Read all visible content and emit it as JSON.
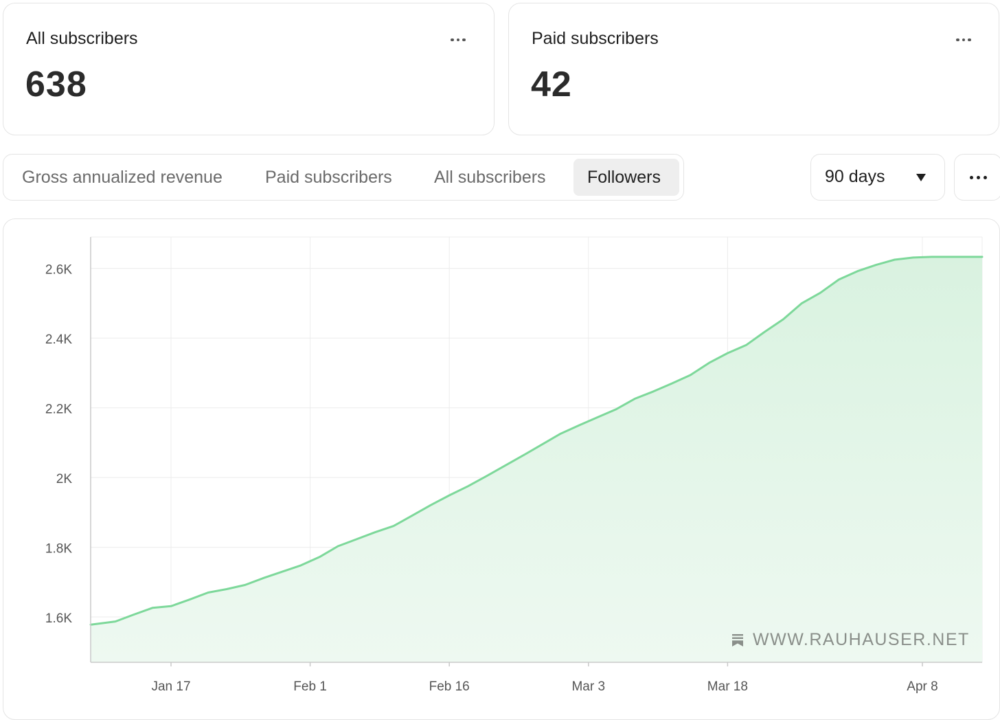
{
  "cards": {
    "all": {
      "label": "All subscribers",
      "value": "638"
    },
    "paid": {
      "label": "Paid subscribers",
      "value": "42"
    }
  },
  "tabs": [
    {
      "label": "Gross annualized revenue",
      "active": false
    },
    {
      "label": "Paid subscribers",
      "active": false
    },
    {
      "label": "All subscribers",
      "active": false
    },
    {
      "label": "Followers",
      "active": true
    }
  ],
  "range_select": {
    "value": "90 days"
  },
  "watermark": {
    "text": "WWW.RAUHAUSER.NET"
  },
  "colors": {
    "line": "#7dd89a",
    "fill": "#e3f6e8",
    "grid": "#ececec"
  },
  "icons": {
    "card_menu": "more-horizontal-icon",
    "range_caret": "caret-down-icon",
    "chart_menu": "more-horizontal-icon"
  },
  "chart_data": {
    "type": "area",
    "title": "",
    "xlabel": "",
    "ylabel": "",
    "x_ticks": [
      "Jan 17",
      "Feb 1",
      "Feb 16",
      "Mar 3",
      "Mar 18",
      "Apr 8"
    ],
    "y_ticks": [
      1600,
      1800,
      2000,
      2200,
      2400,
      2600
    ],
    "y_tick_labels": [
      "1.6K",
      "1.8K",
      "2K",
      "2.2K",
      "2.4K",
      "2.6K"
    ],
    "ylim": [
      1470,
      2690
    ],
    "grid": true,
    "series": [
      {
        "points": [
          [
            "Jan 9",
            1578
          ],
          [
            "Jan 11",
            1587
          ],
          [
            "Jan 13",
            1607
          ],
          [
            "Jan 15",
            1626
          ],
          [
            "Jan 17",
            1631
          ],
          [
            "Jan 19",
            1650
          ],
          [
            "Jan 21",
            1670
          ],
          [
            "Jan 23",
            1680
          ],
          [
            "Jan 25",
            1692
          ],
          [
            "Jan 27",
            1712
          ],
          [
            "Jan 29",
            1730
          ],
          [
            "Jan 31",
            1748
          ],
          [
            "Feb 2",
            1772
          ],
          [
            "Feb 4",
            1803
          ],
          [
            "Feb 6",
            1823
          ],
          [
            "Feb 8",
            1843
          ],
          [
            "Feb 10",
            1861
          ],
          [
            "Feb 12",
            1891
          ],
          [
            "Feb 14",
            1921
          ],
          [
            "Feb 16",
            1949
          ],
          [
            "Feb 18",
            1975
          ],
          [
            "Feb 20",
            2004
          ],
          [
            "Feb 22",
            2034
          ],
          [
            "Feb 24",
            2064
          ],
          [
            "Feb 26",
            2095
          ],
          [
            "Feb 28",
            2126
          ],
          [
            "Mar 2",
            2150
          ],
          [
            "Mar 4",
            2173
          ],
          [
            "Mar 6",
            2196
          ],
          [
            "Mar 8",
            2226
          ],
          [
            "Mar 10",
            2247
          ],
          [
            "Mar 12",
            2270
          ],
          [
            "Mar 14",
            2294
          ],
          [
            "Mar 16",
            2329
          ],
          [
            "Mar 18",
            2357
          ],
          [
            "Mar 20",
            2380
          ],
          [
            "Mar 22",
            2418
          ],
          [
            "Mar 24",
            2454
          ],
          [
            "Mar 26",
            2500
          ],
          [
            "Mar 28",
            2530
          ],
          [
            "Mar 30",
            2568
          ],
          [
            "Apr 1",
            2592
          ],
          [
            "Apr 3",
            2610
          ],
          [
            "Apr 5",
            2625
          ],
          [
            "Apr 7",
            2631
          ],
          [
            "Apr 9",
            2633
          ],
          [
            "Apr 10",
            2633
          ]
        ]
      }
    ]
  }
}
